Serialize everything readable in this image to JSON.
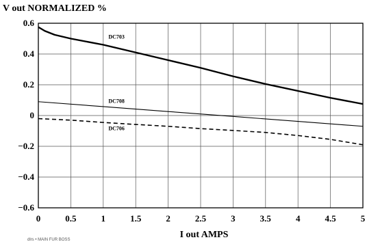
{
  "chart_data": {
    "type": "line",
    "title": "",
    "ylabel": "V out NORMALIZED %",
    "xlabel": "I out AMPS",
    "xlim": [
      0,
      5
    ],
    "ylim": [
      -0.6,
      0.6
    ],
    "x_ticks": [
      0,
      0.5,
      1,
      1.5,
      2,
      2.5,
      3,
      3.5,
      4,
      4.5,
      5
    ],
    "x_tick_labels": [
      "0",
      "0.5",
      "1",
      "1.5",
      "2",
      "2.5",
      "3",
      "3.5",
      "4",
      "4.5",
      "5"
    ],
    "y_ticks": [
      0.6,
      0.4,
      0.2,
      0,
      -0.2,
      -0.4,
      -0.6
    ],
    "y_tick_labels": [
      "0.6",
      "0.4",
      "0.2",
      "0",
      "−0.2",
      "−0.4",
      "−0.6"
    ],
    "grid": true,
    "series": [
      {
        "name": "DC703",
        "style": "thick-solid",
        "color": "#000000",
        "x": [
          0,
          0.1,
          0.25,
          0.5,
          1,
          1.5,
          2,
          2.5,
          3,
          3.5,
          4,
          4.5,
          5
        ],
        "y": [
          0.575,
          0.55,
          0.525,
          0.5,
          0.46,
          0.41,
          0.36,
          0.31,
          0.255,
          0.205,
          0.16,
          0.115,
          0.075
        ]
      },
      {
        "name": "DC708",
        "style": "thin-solid",
        "color": "#000000",
        "x": [
          0,
          1,
          2,
          3,
          4,
          5
        ],
        "y": [
          0.09,
          0.058,
          0.026,
          -0.006,
          -0.038,
          -0.07
        ]
      },
      {
        "name": "DC706",
        "style": "dashed",
        "color": "#000000",
        "x": [
          0,
          0.5,
          1,
          1.5,
          2,
          2.5,
          3,
          3.5,
          4,
          4.5,
          5
        ],
        "y": [
          -0.02,
          -0.03,
          -0.045,
          -0.058,
          -0.07,
          -0.085,
          -0.097,
          -0.11,
          -0.13,
          -0.155,
          -0.19
        ]
      }
    ]
  },
  "footnote": "dlrs • MAIN FUR BOSS"
}
